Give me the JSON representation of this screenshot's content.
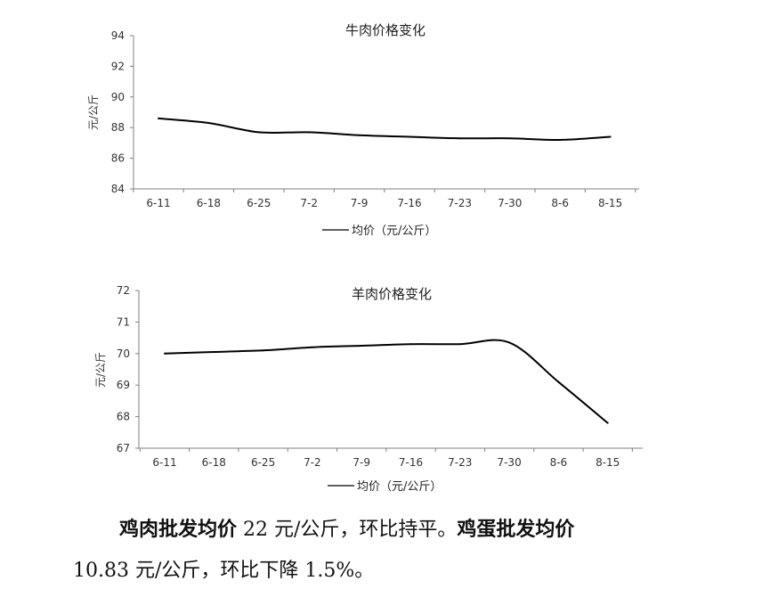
{
  "chart_data": [
    {
      "type": "line",
      "title": "牛肉价格变化",
      "xlabel": "",
      "ylabel": "元/公斤",
      "categories": [
        "6-11",
        "6-18",
        "6-25",
        "7-2",
        "7-9",
        "7-16",
        "7-23",
        "7-30",
        "8-6",
        "8-15"
      ],
      "yticks": [
        "84",
        "86",
        "88",
        "90",
        "92",
        "94"
      ],
      "ylim": [
        84,
        94
      ],
      "series": [
        {
          "name": "均价（元/公斤）",
          "values": [
            88.6,
            88.3,
            87.7,
            87.7,
            87.5,
            87.4,
            87.3,
            87.3,
            87.2,
            87.4
          ]
        }
      ],
      "legend": "bottom",
      "grid": false,
      "line_color": "#000000"
    },
    {
      "type": "line",
      "title": "羊肉价格变化",
      "xlabel": "",
      "ylabel": "元/公斤",
      "categories": [
        "6-11",
        "6-18",
        "6-25",
        "7-2",
        "7-9",
        "7-16",
        "7-23",
        "7-30",
        "8-6",
        "8-15"
      ],
      "yticks": [
        "67",
        "68",
        "69",
        "70",
        "71",
        "72"
      ],
      "ylim": [
        67,
        72
      ],
      "series": [
        {
          "name": "均价（元/公斤）",
          "values": [
            70.0,
            70.05,
            70.1,
            70.2,
            70.25,
            70.3,
            70.3,
            70.35,
            69.1,
            67.8
          ]
        }
      ],
      "legend": "bottom",
      "grid": false,
      "line_color": "#000000"
    }
  ],
  "text": {
    "p1_bold1": "鸡肉批发均价",
    "p1_normal1": " 22 元/公斤，环比持平。",
    "p1_bold2": "鸡蛋批发均价",
    "p2_normal": "10.83 元/公斤，环比下降 1.5%。"
  }
}
